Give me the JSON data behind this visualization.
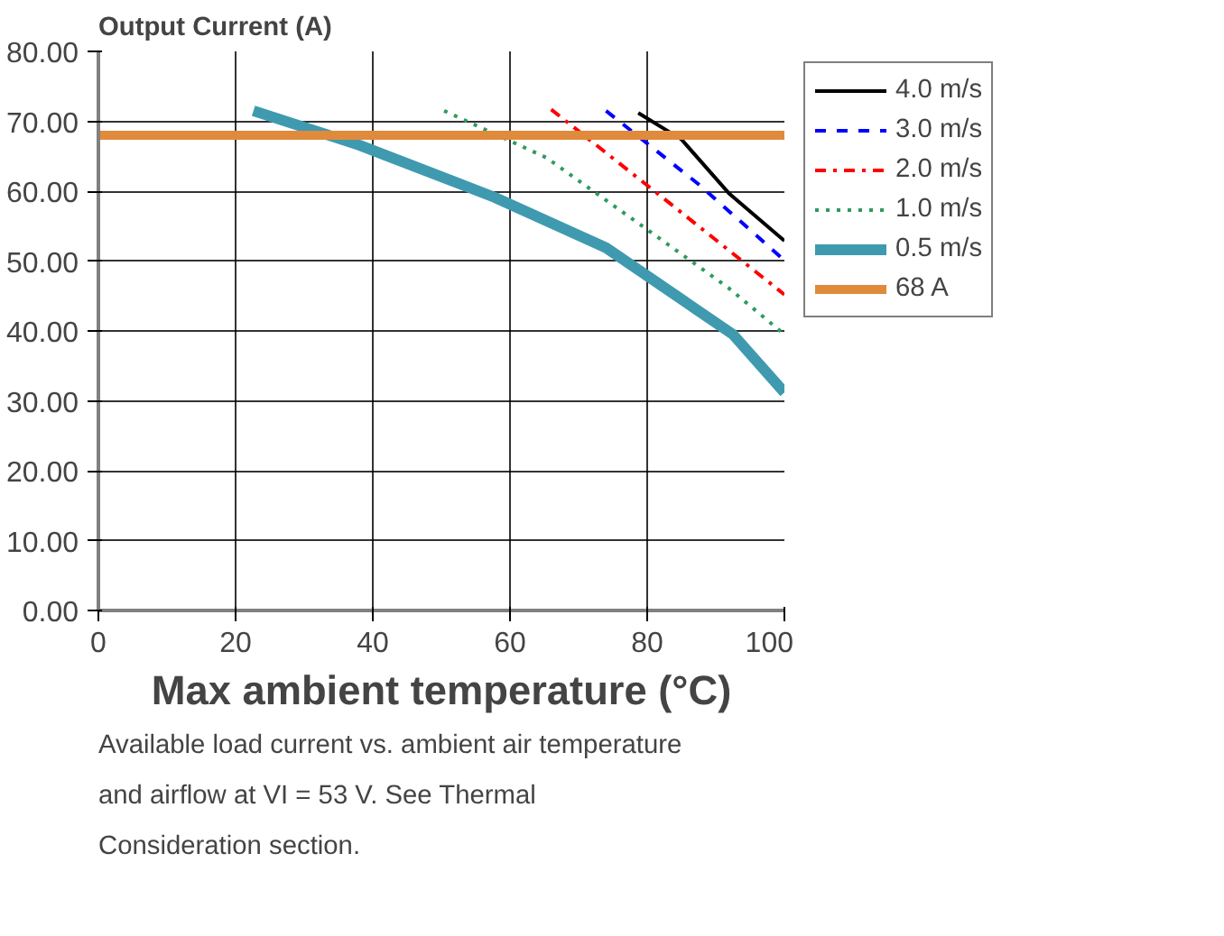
{
  "chart_data": {
    "type": "line",
    "xlabel": "Max ambient temperature (°C)",
    "ylabel": "Output Current (A)",
    "xlim": [
      0,
      100
    ],
    "xticks": [
      0,
      20,
      40,
      60,
      80,
      100
    ],
    "ylim": [
      0,
      80
    ],
    "yticks": [
      {
        "value": 0,
        "label": "0.00"
      },
      {
        "value": 10,
        "label": "10.00"
      },
      {
        "value": 20,
        "label": "20.00"
      },
      {
        "value": 30,
        "label": "30.00"
      },
      {
        "value": 40,
        "label": "40.00"
      },
      {
        "value": 50,
        "label": "50.00"
      },
      {
        "value": 60,
        "label": "60.00"
      },
      {
        "value": 70,
        "label": "70.00"
      },
      {
        "value": 80,
        "label": "80.00"
      }
    ],
    "grid": true,
    "legend": "right",
    "marker": "none",
    "series": [
      {
        "name": "4.0 m/s",
        "color": "#000000",
        "line_style": "solid",
        "x": [
          78.7,
          85,
          92,
          100
        ],
        "values": [
          71.2,
          67.4,
          59.6,
          52.9
        ]
      },
      {
        "name": "3.0 m/s",
        "color": "#0000ff",
        "line_style": "dashed",
        "x": [
          74,
          87.6,
          100
        ],
        "values": [
          71.5,
          60.9,
          50.1
        ]
      },
      {
        "name": "2.0 m/s",
        "color": "#ff0000",
        "line_style": "dashdot",
        "x": [
          66,
          83,
          100
        ],
        "values": [
          71.7,
          58.5,
          45.2
        ]
      },
      {
        "name": "1.0 m/s",
        "color": "#2e9b5e",
        "line_style": "dotted",
        "x": [
          50.4,
          65.3,
          80,
          91.8,
          100
        ],
        "values": [
          71.5,
          64.8,
          54.5,
          46.2,
          39.5
        ]
      },
      {
        "name": "0.5 m/s",
        "color": "#3f9ab0",
        "line_style": "solid",
        "x": [
          22.6,
          38,
          57.8,
          74,
          92.5,
          100
        ],
        "values": [
          71.5,
          66.6,
          59.1,
          51.9,
          39.5,
          31.2
        ]
      },
      {
        "name": "68 A",
        "color": "#e08a3c",
        "line_style": "solid",
        "x": [
          0,
          100
        ],
        "values": [
          68,
          68
        ]
      }
    ],
    "annotations": [
      "Available load current vs. ambient air temperature and airflow at VI = 53 V. See Thermal Consideration section."
    ]
  }
}
